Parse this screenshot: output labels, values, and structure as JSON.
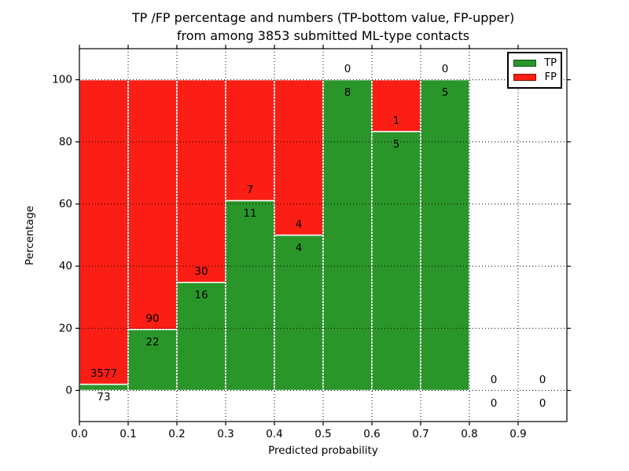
{
  "figure": {
    "title_line1": "TP /FP percentage and numbers (TP-bottom value, FP-upper)",
    "title_line2": "from among 3853 submitted ML-type contacts",
    "xlabel": "Predicted probability",
    "ylabel": "Percentage"
  },
  "chart_data": {
    "type": "bar",
    "variant": "stacked-percentage-histogram",
    "title": "TP /FP percentage and numbers (TP-bottom value, FP-upper)\nfrom among 3853 submitted ML-type contacts",
    "xlabel": "Predicted probability",
    "ylabel": "Percentage",
    "total_submitted_contacts": 3853,
    "bin_edges": [
      0.0,
      0.1,
      0.2,
      0.3,
      0.4,
      0.5,
      0.6,
      0.7,
      0.8,
      0.9,
      1.0
    ],
    "series": [
      {
        "name": "TP",
        "color": "#2a962a",
        "counts": [
          73,
          22,
          16,
          11,
          4,
          8,
          5,
          5,
          0,
          0
        ]
      },
      {
        "name": "FP",
        "color": "#fa1e14",
        "counts": [
          3577,
          90,
          30,
          7,
          4,
          0,
          1,
          0,
          0,
          0
        ]
      }
    ],
    "tp_percent_heights": [
      2.0,
      19.6,
      34.8,
      61.1,
      50.0,
      100.0,
      83.3,
      100.0,
      0.0,
      0.0
    ],
    "annotation_note": "FP count printed above TP/FP boundary, TP count below; bars are percent of bin total summing to 100",
    "bar_edge_color": "#ffffff",
    "xlim": [
      0.0,
      1.0
    ],
    "ylim": [
      -10,
      110
    ],
    "xticks": [
      "0.0",
      "0.1",
      "0.2",
      "0.3",
      "0.4",
      "0.5",
      "0.6",
      "0.7",
      "0.8",
      "0.9"
    ],
    "yticks": [
      0,
      20,
      40,
      60,
      80,
      100
    ],
    "grid": "dotted black, drawn above bars",
    "legend_position": "upper right"
  }
}
